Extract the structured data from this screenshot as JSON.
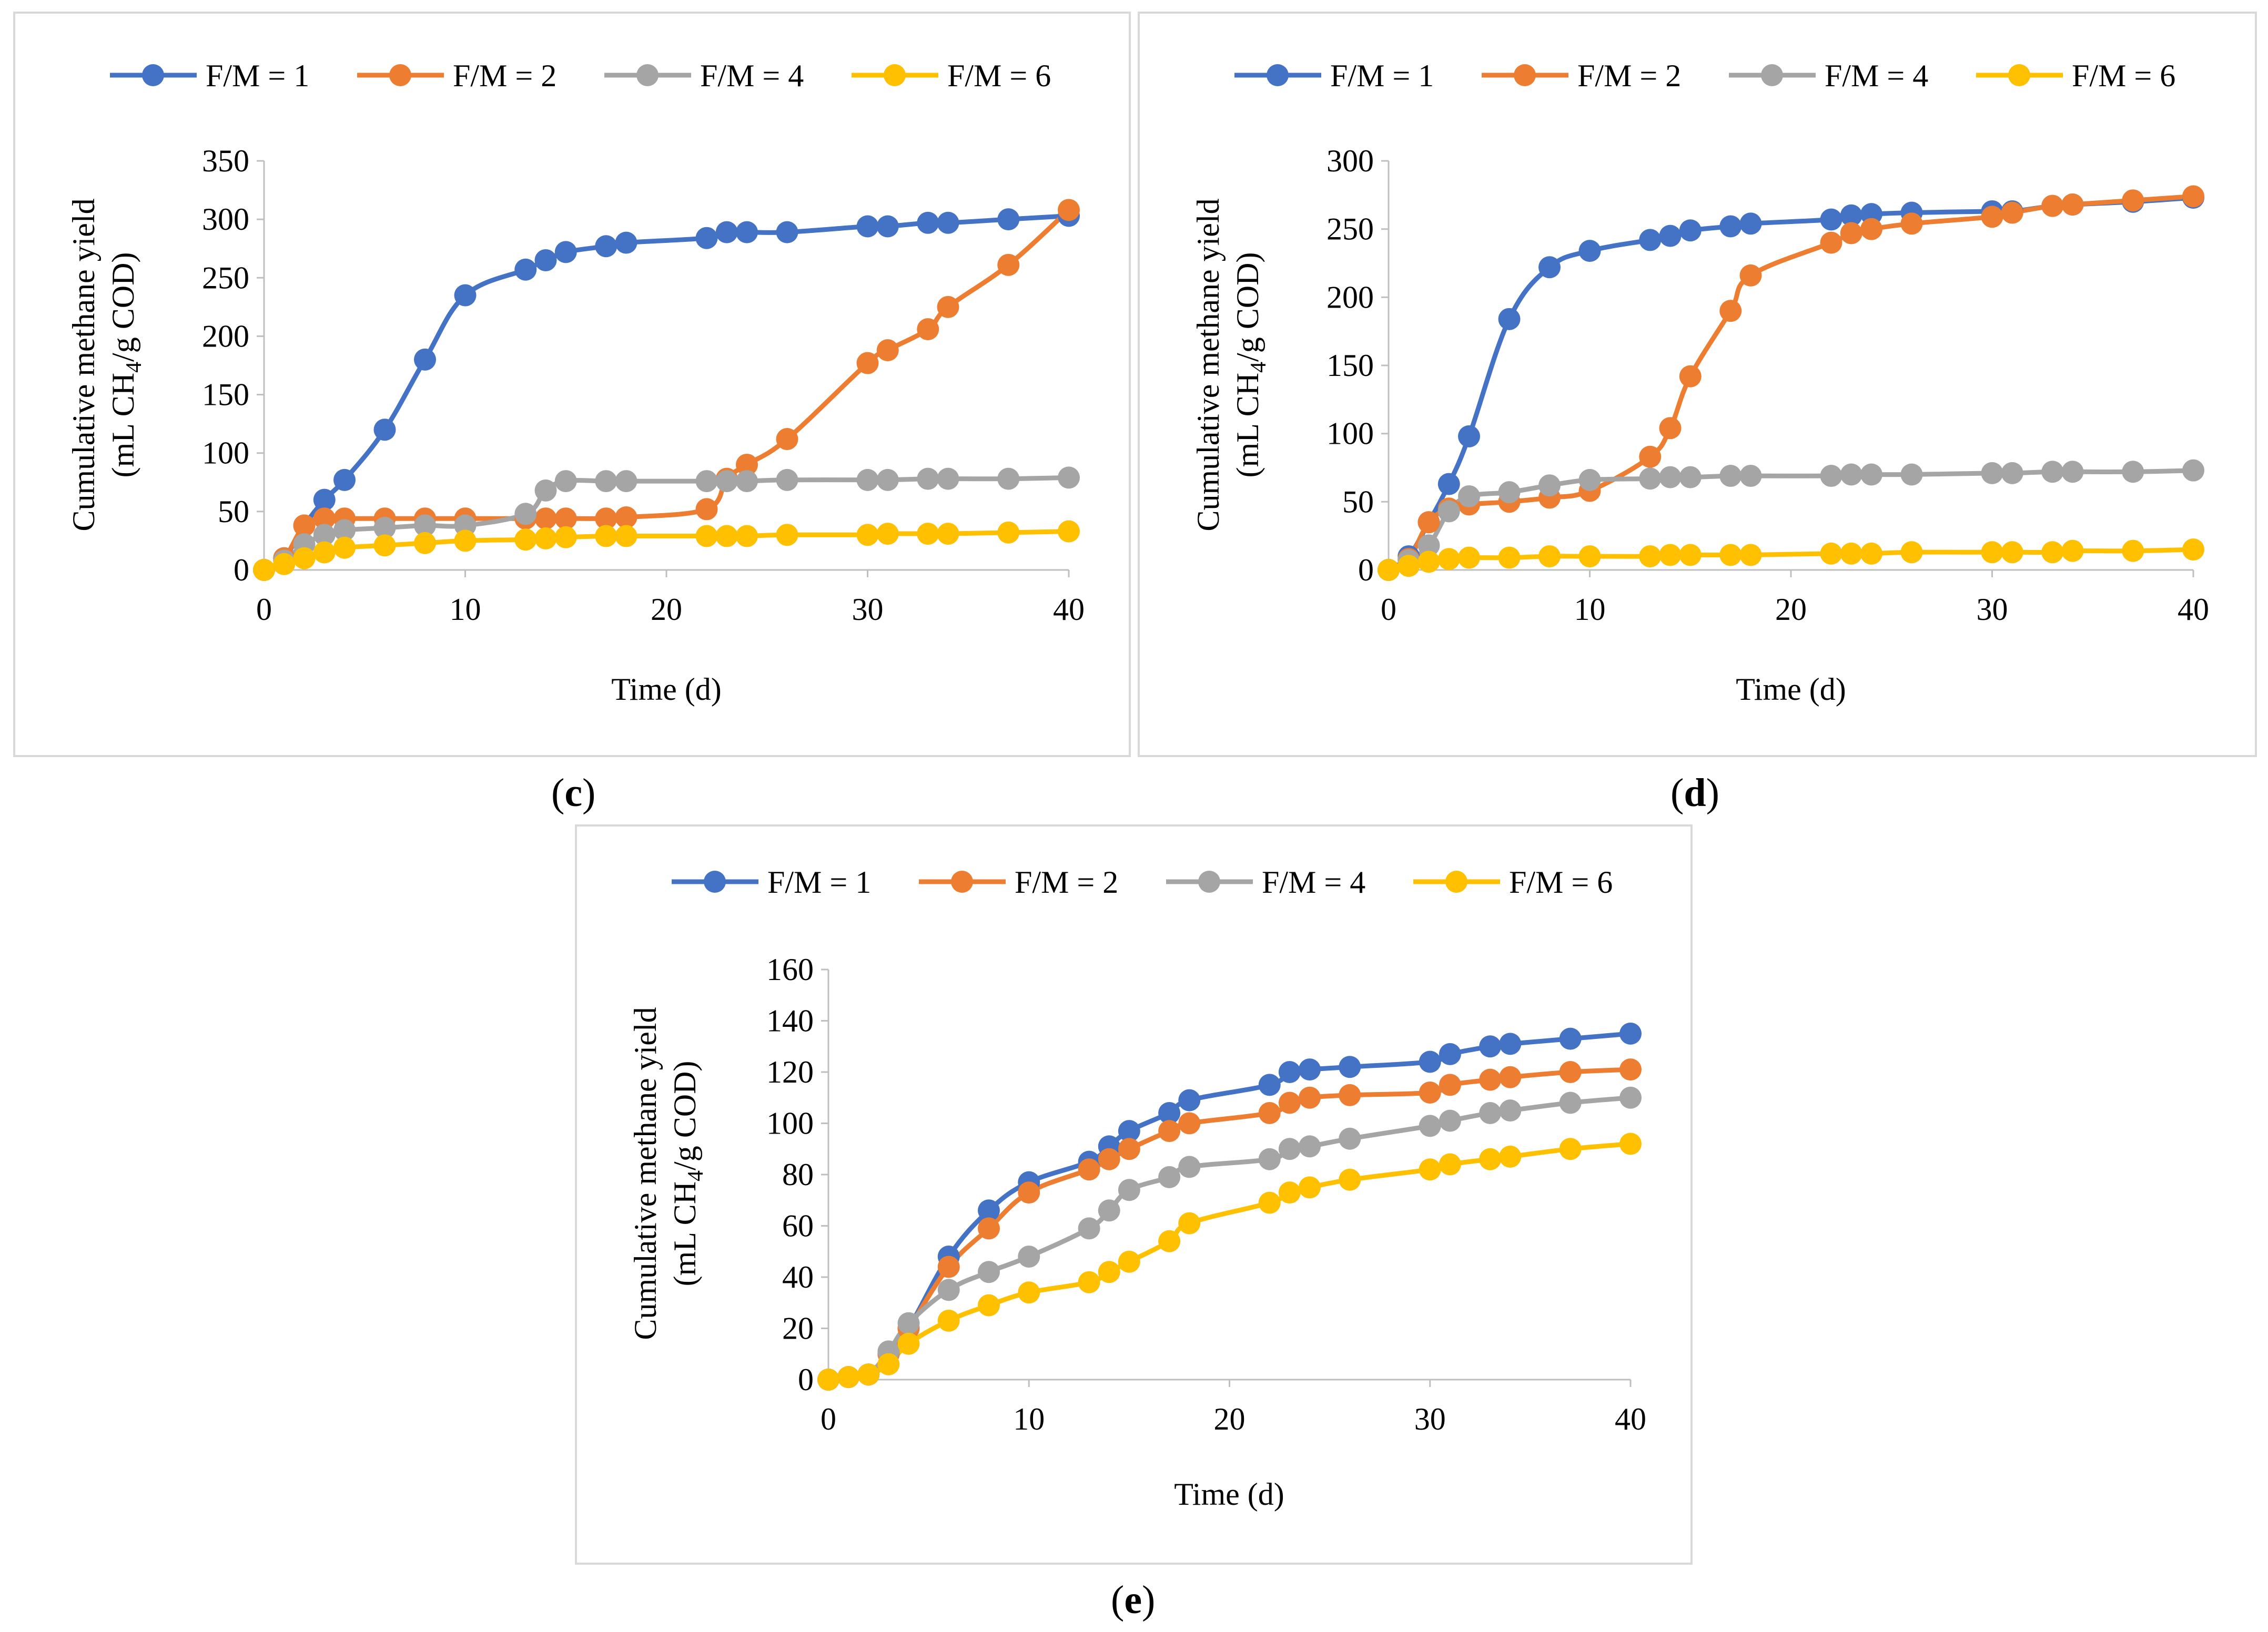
{
  "colors": {
    "F/M = 1": "#4472C4",
    "F/M = 2": "#ED7D31",
    "F/M = 4": "#A5A5A5",
    "F/M = 6": "#FFC000",
    "axis": "#bfbfbf",
    "border": "#d9d9d9"
  },
  "captions": {
    "c": {
      "open": "(",
      "letter": "c",
      "close": ")"
    },
    "d": {
      "open": "(",
      "letter": "d",
      "close": ")"
    },
    "e": {
      "open": "(",
      "letter": "e",
      "close": ")"
    }
  },
  "chart_data": [
    {
      "panel": "c",
      "type": "line",
      "title": "",
      "xlabel": "Time (d)",
      "ylabel_line1": "Cumulative methane yield",
      "ylabel_line2_prefix": "(mL CH",
      "ylabel_line2_sub": "4",
      "ylabel_line2_suffix": "/g COD)",
      "xlim": [
        0,
        40
      ],
      "ylim": [
        0,
        350
      ],
      "xticks": [
        0,
        10,
        20,
        30,
        40
      ],
      "yticks": [
        0,
        50,
        100,
        150,
        200,
        250,
        300,
        350
      ],
      "legend": "top",
      "x": [
        0,
        1,
        2,
        3,
        4,
        6,
        8,
        10,
        13,
        14,
        15,
        17,
        18,
        22,
        23,
        24,
        26,
        30,
        31,
        33,
        34,
        37,
        40
      ],
      "series": [
        {
          "name": "F/M = 1",
          "values": [
            0,
            10,
            38,
            60,
            77,
            120,
            180,
            235,
            257,
            265,
            272,
            277,
            280,
            284,
            289,
            289,
            289,
            294,
            294,
            297,
            297,
            300,
            303
          ]
        },
        {
          "name": "F/M = 2",
          "values": [
            0,
            10,
            38,
            44,
            44,
            44,
            44,
            44,
            44,
            44,
            44,
            44,
            45,
            52,
            78,
            90,
            112,
            177,
            188,
            206,
            225,
            261,
            308
          ]
        },
        {
          "name": "F/M = 4",
          "values": [
            0,
            8,
            22,
            30,
            34,
            36,
            38,
            38,
            48,
            68,
            76,
            76,
            76,
            76,
            76,
            76,
            77,
            77,
            77,
            78,
            78,
            78,
            79
          ]
        },
        {
          "name": "F/M = 6",
          "values": [
            0,
            5,
            10,
            15,
            19,
            21,
            23,
            25,
            26,
            27,
            28,
            29,
            29,
            29,
            29,
            29,
            30,
            30,
            31,
            31,
            31,
            32,
            33
          ]
        }
      ]
    },
    {
      "panel": "d",
      "type": "line",
      "title": "",
      "xlabel": "Time (d)",
      "ylabel_line1": "Cumulative methane yield",
      "ylabel_line2_prefix": "(mL CH",
      "ylabel_line2_sub": "4",
      "ylabel_line2_suffix": "/g COD)",
      "xlim": [
        0,
        40
      ],
      "ylim": [
        0,
        300
      ],
      "xticks": [
        0,
        10,
        20,
        30,
        40
      ],
      "yticks": [
        0,
        50,
        100,
        150,
        200,
        250,
        300
      ],
      "legend": "top",
      "x": [
        0,
        1,
        2,
        3,
        4,
        6,
        8,
        10,
        13,
        14,
        15,
        17,
        18,
        22,
        23,
        24,
        26,
        30,
        31,
        33,
        34,
        37,
        40
      ],
      "series": [
        {
          "name": "F/M = 1",
          "values": [
            0,
            10,
            35,
            63,
            98,
            184,
            222,
            234,
            242,
            245,
            249,
            252,
            254,
            257,
            260,
            261,
            262,
            263,
            263,
            267,
            268,
            270,
            273
          ]
        },
        {
          "name": "F/M = 2",
          "values": [
            0,
            8,
            35,
            45,
            48,
            50,
            53,
            58,
            83,
            104,
            142,
            190,
            216,
            240,
            247,
            250,
            254,
            259,
            262,
            267,
            268,
            271,
            274
          ]
        },
        {
          "name": "F/M = 4",
          "values": [
            0,
            7,
            18,
            43,
            54,
            57,
            62,
            66,
            67,
            68,
            68,
            69,
            69,
            69,
            70,
            70,
            70,
            71,
            71,
            72,
            72,
            72,
            73
          ]
        },
        {
          "name": "F/M = 6",
          "values": [
            0,
            3,
            6,
            8,
            9,
            9,
            10,
            10,
            10,
            11,
            11,
            11,
            11,
            12,
            12,
            12,
            13,
            13,
            13,
            13,
            14,
            14,
            15
          ]
        }
      ]
    },
    {
      "panel": "e",
      "type": "line",
      "title": "",
      "xlabel": "Time (d)",
      "ylabel_line1": "Cumulative methane yield",
      "ylabel_line2_prefix": "(mL CH",
      "ylabel_line2_sub": "4",
      "ylabel_line2_suffix": "/g COD)",
      "xlim": [
        0,
        40
      ],
      "ylim": [
        0,
        160
      ],
      "xticks": [
        0,
        10,
        20,
        30,
        40
      ],
      "yticks": [
        0,
        20,
        40,
        60,
        80,
        100,
        120,
        140,
        160
      ],
      "legend": "top",
      "x": [
        0,
        1,
        2,
        3,
        4,
        6,
        8,
        10,
        13,
        14,
        15,
        17,
        18,
        22,
        23,
        24,
        26,
        30,
        31,
        33,
        34,
        37,
        40
      ],
      "series": [
        {
          "name": "F/M = 1",
          "values": [
            0,
            1,
            2,
            10,
            20,
            48,
            66,
            77,
            85,
            91,
            97,
            104,
            109,
            115,
            120,
            121,
            122,
            124,
            127,
            130,
            131,
            133,
            135
          ]
        },
        {
          "name": "F/M = 2",
          "values": [
            0,
            1,
            2,
            10,
            20,
            44,
            59,
            73,
            82,
            86,
            90,
            97,
            100,
            104,
            108,
            110,
            111,
            112,
            115,
            117,
            118,
            120,
            121
          ]
        },
        {
          "name": "F/M = 4",
          "values": [
            0,
            1,
            2,
            11,
            22,
            35,
            42,
            48,
            59,
            66,
            74,
            79,
            83,
            86,
            90,
            91,
            94,
            99,
            101,
            104,
            105,
            108,
            110
          ]
        },
        {
          "name": "F/M = 6",
          "values": [
            0,
            1,
            2,
            6,
            14,
            23,
            29,
            34,
            38,
            42,
            46,
            54,
            61,
            69,
            73,
            75,
            78,
            82,
            84,
            86,
            87,
            90,
            92
          ]
        }
      ]
    }
  ]
}
